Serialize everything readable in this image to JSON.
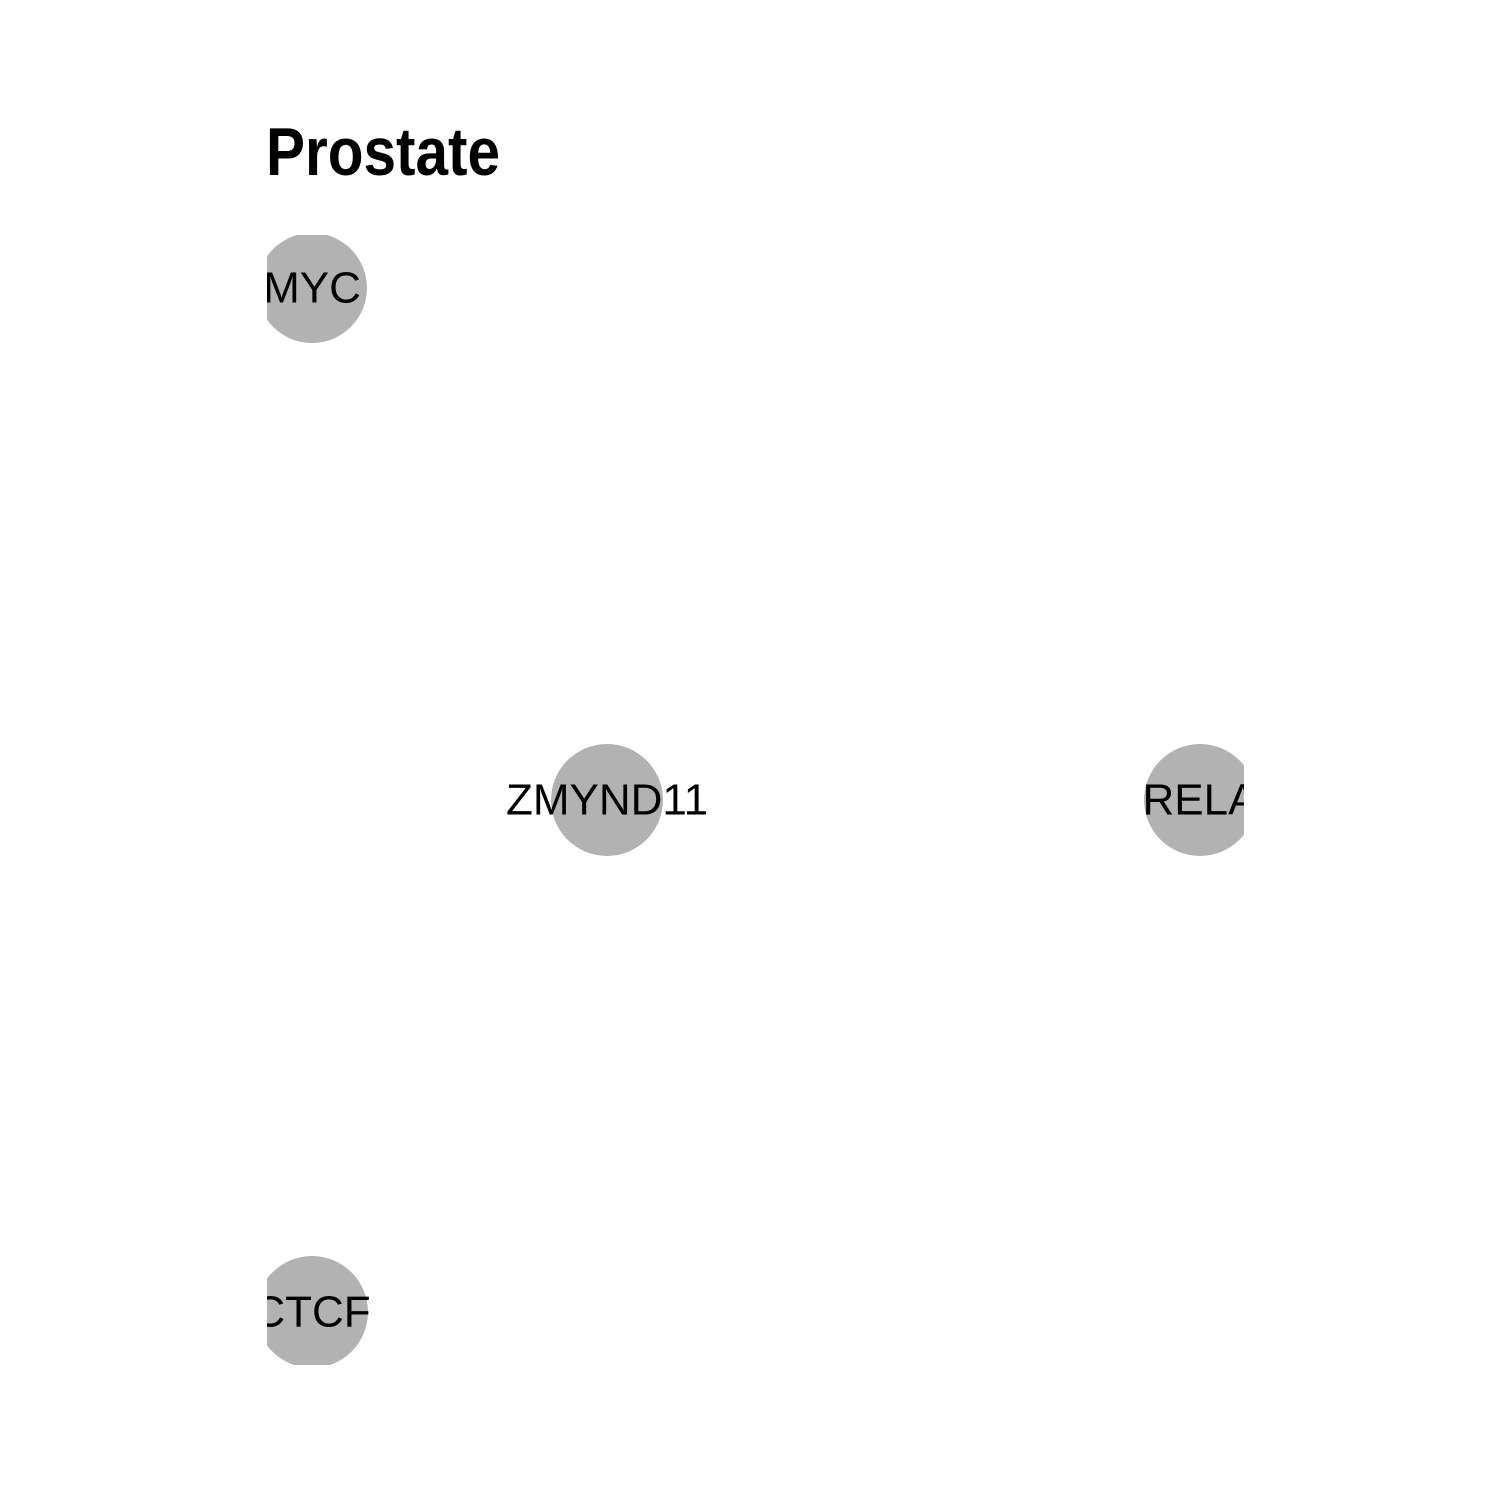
{
  "title": "Prostate",
  "colors": {
    "node_fill": "#b2b2b2",
    "label": "#000000",
    "background": "#ffffff"
  },
  "network": {
    "nodes": [
      {
        "id": "MYC",
        "label": "MYC"
      },
      {
        "id": "ZMYND11",
        "label": "ZMYND11"
      },
      {
        "id": "RELA",
        "label": "RELA"
      },
      {
        "id": "CTCF",
        "label": "CTCF"
      }
    ],
    "edges": []
  }
}
